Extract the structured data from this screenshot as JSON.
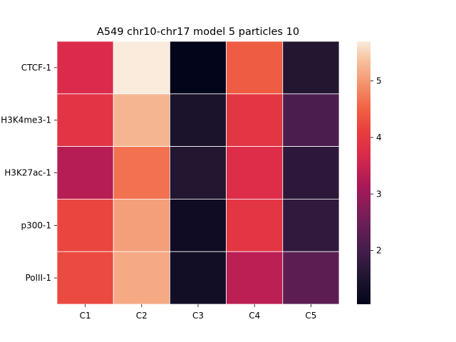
{
  "chart_data": {
    "type": "heatmap",
    "title": "A549 chr10-chr17 model 5 particles 10",
    "xlabel": "",
    "ylabel": "",
    "columns": [
      "C1",
      "C2",
      "C3",
      "C4",
      "C5"
    ],
    "rows": [
      "CTCF-1",
      "H3K4me3-1",
      "H3K27ac-1",
      "p300-1",
      "PolII-1"
    ],
    "values": [
      [
        3.7,
        5.7,
        1.05,
        4.45,
        1.55
      ],
      [
        3.9,
        5.25,
        1.45,
        3.95,
        2.1
      ],
      [
        3.3,
        4.65,
        1.55,
        3.75,
        1.7
      ],
      [
        4.2,
        5.05,
        1.25,
        3.95,
        1.75
      ],
      [
        4.25,
        5.15,
        1.3,
        3.35,
        2.3
      ]
    ],
    "colorbar": {
      "min": 1.05,
      "max": 5.7,
      "ticks": [
        "2",
        "3",
        "4",
        "5"
      ],
      "colormap": "rocket"
    },
    "grid_lines_color": "#ffffff"
  }
}
